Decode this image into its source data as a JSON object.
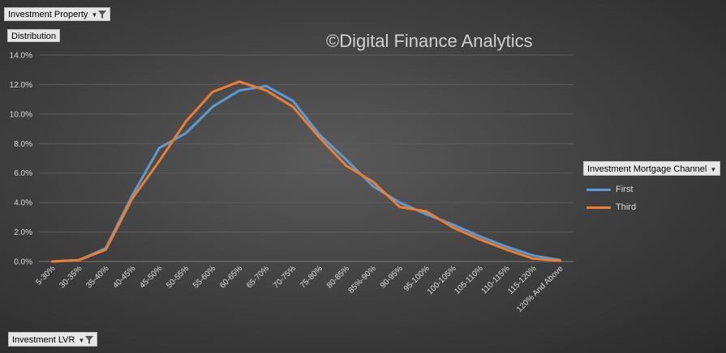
{
  "filters": {
    "top": "Investment Property",
    "distribution": "Distribution",
    "bottom": "Investment LVR",
    "channel": "Investment Mortgage Channel"
  },
  "watermark": "©Digital Finance Analytics",
  "chart_data": {
    "type": "line",
    "categories": [
      "5-30%",
      "30-35%",
      "35-40%",
      "40-45%",
      "45-50%",
      "50-55%",
      "55-60%",
      "60-65%",
      "65-70%",
      "70-75%",
      "75-80%",
      "80-85%",
      "85%-90%",
      "90-95%",
      "95-100%",
      "100-105%",
      "105-110%",
      "110-115%",
      "115-120%",
      "120% And Above"
    ],
    "series": [
      {
        "name": "First",
        "color": "#5b9bd5",
        "values": [
          0.0,
          0.1,
          0.9,
          4.5,
          7.7,
          8.7,
          10.5,
          11.6,
          11.9,
          10.9,
          8.6,
          6.9,
          5.1,
          4.0,
          3.2,
          2.5,
          1.7,
          1.0,
          0.4,
          0.1
        ]
      },
      {
        "name": "Third",
        "color": "#ed7d31",
        "values": [
          0.0,
          0.1,
          0.8,
          4.3,
          6.8,
          9.5,
          11.5,
          12.2,
          11.6,
          10.5,
          8.4,
          6.5,
          5.4,
          3.7,
          3.4,
          2.3,
          1.5,
          0.8,
          0.2,
          0.05
        ]
      }
    ],
    "ylim": [
      0,
      14
    ],
    "ytick_step": 2,
    "ytick_format": "percent-1dp",
    "grid": true,
    "legend_position": "right"
  }
}
